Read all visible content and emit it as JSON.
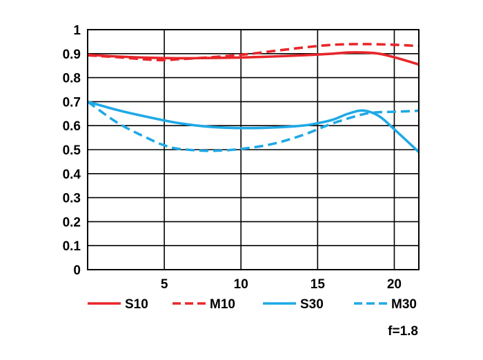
{
  "chart_data": {
    "type": "line",
    "title": "",
    "xlabel": "",
    "ylabel": "",
    "xlim": [
      0,
      21.6
    ],
    "ylim": [
      0,
      1
    ],
    "x_ticks": [
      5,
      10,
      15,
      20
    ],
    "y_ticks": [
      0,
      0.1,
      0.2,
      0.3,
      0.4,
      0.5,
      0.6,
      0.7,
      0.8,
      0.9,
      1
    ],
    "x_tick_labels": [
      "5",
      "10",
      "15",
      "20"
    ],
    "y_tick_labels": [
      "0",
      "0.1",
      "0.2",
      "0.3",
      "0.4",
      "0.5",
      "0.6",
      "0.7",
      "0.8",
      "0.9",
      "1"
    ],
    "grid": true,
    "legend_position": "bottom",
    "note": "f=1.8",
    "series": [
      {
        "name": "S10",
        "color": "#e8262a",
        "dash": "solid",
        "x": [
          0,
          2,
          4,
          6,
          8,
          10,
          12,
          14,
          16,
          17,
          18,
          19,
          20,
          21.6
        ],
        "y": [
          0.895,
          0.888,
          0.883,
          0.881,
          0.882,
          0.884,
          0.888,
          0.893,
          0.9,
          0.905,
          0.905,
          0.9,
          0.885,
          0.855
        ]
      },
      {
        "name": "M10",
        "color": "#e8262a",
        "dash": "dashed",
        "x": [
          0,
          2,
          4,
          5,
          6,
          8,
          10,
          12,
          14,
          16,
          18,
          20,
          21.6
        ],
        "y": [
          0.893,
          0.885,
          0.875,
          0.873,
          0.877,
          0.885,
          0.895,
          0.91,
          0.925,
          0.937,
          0.94,
          0.937,
          0.932
        ]
      },
      {
        "name": "S30",
        "color": "#1ea9e6",
        "dash": "solid",
        "x": [
          0,
          2,
          4,
          6,
          8,
          10,
          12,
          14,
          15,
          16,
          17,
          18,
          19,
          20,
          21.6
        ],
        "y": [
          0.7,
          0.664,
          0.635,
          0.61,
          0.595,
          0.59,
          0.592,
          0.6,
          0.61,
          0.625,
          0.65,
          0.663,
          0.64,
          0.585,
          0.49
        ]
      },
      {
        "name": "M30",
        "color": "#1ea9e6",
        "dash": "dashed",
        "x": [
          0,
          2,
          4,
          5,
          6,
          8,
          10,
          12,
          14,
          16,
          18,
          19,
          20,
          21.6
        ],
        "y": [
          0.7,
          0.61,
          0.545,
          0.518,
          0.503,
          0.495,
          0.503,
          0.523,
          0.56,
          0.61,
          0.648,
          0.656,
          0.658,
          0.662
        ]
      }
    ]
  }
}
